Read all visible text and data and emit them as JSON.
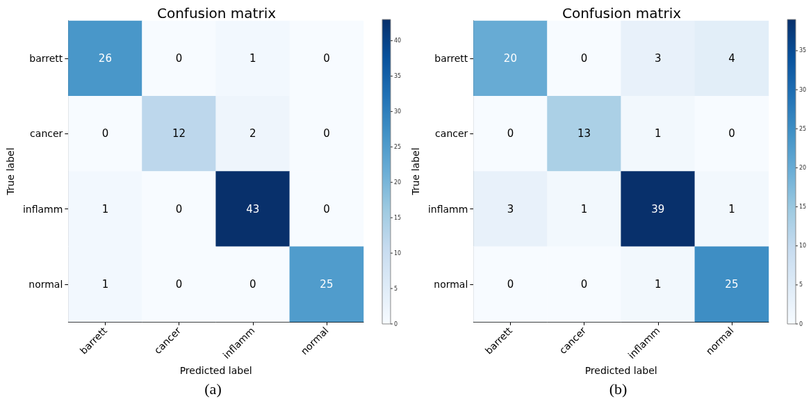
{
  "chart_data": [
    {
      "type": "heatmap",
      "title": "Confusion matrix",
      "xlabel": "Predicted label",
      "ylabel": "True label",
      "annotations": [
        "(a)"
      ],
      "categories": [
        "barrett",
        "cancer",
        "inflamm",
        "normal"
      ],
      "y_categories": [
        "barrett",
        "cancer",
        "inflamm",
        "normal"
      ],
      "cells": [
        [
          26,
          0,
          1,
          0
        ],
        [
          0,
          12,
          2,
          0
        ],
        [
          1,
          0,
          43,
          0
        ],
        [
          1,
          0,
          0,
          25
        ]
      ],
      "clim": [
        0,
        43
      ],
      "cticks": [
        0,
        5,
        10,
        15,
        20,
        25,
        30,
        35,
        40
      ],
      "data_labels": true
    },
    {
      "type": "heatmap",
      "title": "Confusion matrix",
      "xlabel": "Predicted label",
      "ylabel": "True label",
      "annotations": [
        "(b)"
      ],
      "categories": [
        "barrett",
        "cancer",
        "inflamm",
        "normal"
      ],
      "y_categories": [
        "barrett",
        "cancer",
        "inflamm",
        "normal"
      ],
      "cells": [
        [
          20,
          0,
          3,
          4
        ],
        [
          0,
          13,
          1,
          0
        ],
        [
          3,
          1,
          39,
          1
        ],
        [
          0,
          0,
          1,
          25
        ]
      ],
      "clim": [
        0,
        39
      ],
      "cticks": [
        0,
        5,
        10,
        15,
        20,
        25,
        30,
        35
      ],
      "data_labels": true
    }
  ]
}
